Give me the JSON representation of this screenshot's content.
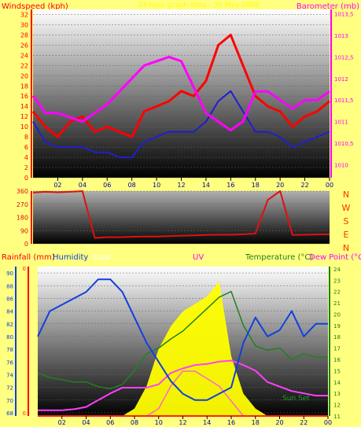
{
  "header": {
    "title": "24 hour graph data - 30 May 2008"
  },
  "colors": {
    "background": "#ffff80",
    "wind_speed": "#ff0000",
    "wind_avg": "#1f1fd0",
    "barometer": "#ff00ff",
    "wind_dir": "#e01010",
    "rain": "#ff2020",
    "humidity": "#1040e0",
    "solar": "#ffff00",
    "uv": "#ff66cc",
    "temperature": "#208020",
    "dewpoint": "#ff40ff",
    "compass": "#ff3300"
  },
  "chart_data": [
    {
      "type": "line",
      "name": "wind-barometer",
      "ylabel_left": "Windspeed (kph)",
      "ylabel_right": "Barometer (mb)",
      "y_ticks_left": [
        "0",
        "2",
        "4",
        "6",
        "8",
        "10",
        "12",
        "14",
        "16",
        "18",
        "20",
        "22",
        "24",
        "26",
        "28",
        "30",
        "32"
      ],
      "y_ticks_right": [
        "1010",
        "1010,5",
        "1011",
        "1011,5",
        "1012",
        "1012,5",
        "1013",
        "1013,5"
      ],
      "ylim_left": [
        0,
        33
      ],
      "ylim_right": [
        1009.7,
        1013.6
      ],
      "x_ticks": [
        "02",
        "04",
        "06",
        "08",
        "10",
        "12",
        "14",
        "16",
        "18",
        "20",
        "22",
        "00"
      ],
      "x": [
        0,
        1,
        2,
        3,
        4,
        5,
        6,
        7,
        8,
        9,
        10,
        11,
        12,
        13,
        14,
        15,
        16,
        17,
        18,
        19,
        20,
        21,
        22,
        23,
        24
      ],
      "series": [
        {
          "name": "Windspeed",
          "values": [
            13,
            10,
            8,
            11,
            12,
            9,
            10,
            9,
            8,
            13,
            14,
            15,
            17,
            16,
            19,
            26,
            28,
            22,
            16,
            14,
            13,
            10,
            12,
            13,
            15
          ]
        },
        {
          "name": "Wind avg",
          "values": [
            11,
            7,
            6,
            6,
            6,
            5,
            5,
            4,
            4,
            7,
            8,
            9,
            9,
            9,
            11,
            15,
            17,
            13,
            9,
            9,
            8,
            6,
            7,
            8,
            9
          ]
        },
        {
          "name": "Barometer",
          "values": [
            1011.6,
            1011.2,
            1011.2,
            1011.1,
            1011.0,
            1011.2,
            1011.4,
            1011.7,
            1012.0,
            1012.3,
            1012.4,
            1012.5,
            1012.4,
            1011.8,
            1011.2,
            1011.0,
            1010.8,
            1011.0,
            1011.7,
            1011.7,
            1011.5,
            1011.3,
            1011.5,
            1011.5,
            1011.7
          ]
        }
      ]
    },
    {
      "type": "line",
      "name": "wind-direction",
      "y_ticks": [
        "0",
        "90",
        "180",
        "270",
        "360"
      ],
      "ylim": [
        0,
        360
      ],
      "compass_labels": [
        "N",
        "W",
        "S",
        "E",
        "N"
      ],
      "x": [
        0,
        1,
        2,
        3,
        4,
        5,
        6,
        7,
        8,
        9,
        10,
        11,
        12,
        13,
        14,
        15,
        16,
        17,
        18,
        19,
        20,
        21,
        22,
        23,
        24
      ],
      "series": [
        {
          "name": "Wind direction",
          "values": [
            350,
            355,
            352,
            355,
            360,
            40,
            45,
            45,
            48,
            50,
            50,
            52,
            55,
            58,
            60,
            62,
            62,
            65,
            70,
            300,
            360,
            60,
            62,
            64,
            65
          ]
        }
      ]
    },
    {
      "type": "line",
      "name": "rain-humidity-solar-temperature",
      "labels": [
        "Rainfall (mm)",
        "Humidity",
        "Solar",
        "UV",
        "Temperature (°C)",
        "Dew Point (°C)"
      ],
      "annotations": [
        "Sun Set"
      ],
      "y_ticks_left_rain": [
        "0"
      ],
      "y_ticks_left_humidity": [
        "68",
        "70",
        "72",
        "74",
        "76",
        "78",
        "80",
        "82",
        "84",
        "86",
        "88",
        "90"
      ],
      "y_ticks_right": [
        "11",
        "12",
        "13",
        "14",
        "15",
        "16",
        "17",
        "18",
        "19",
        "20",
        "21",
        "22",
        "23",
        "24"
      ],
      "ylim_humidity": [
        67.5,
        91
      ],
      "ylim_temperature": [
        11,
        24.2
      ],
      "x_ticks": [
        "02",
        "04",
        "06",
        "08",
        "10",
        "12",
        "14",
        "16",
        "18",
        "20",
        "22",
        "00"
      ],
      "x": [
        0,
        1,
        2,
        3,
        4,
        5,
        6,
        7,
        8,
        9,
        10,
        11,
        12,
        13,
        14,
        15,
        16,
        17,
        18,
        19,
        20,
        21,
        22,
        23,
        24
      ],
      "series": [
        {
          "name": "Humidity",
          "values": [
            80,
            84,
            85,
            86,
            87,
            89,
            89,
            87,
            83,
            79,
            76,
            73,
            71,
            70,
            70,
            71,
            72,
            79,
            83,
            80,
            81,
            84,
            80,
            82,
            82
          ]
        },
        {
          "name": "Temperature",
          "values": [
            14.8,
            14.4,
            14.2,
            14.0,
            14.0,
            13.6,
            13.4,
            13.8,
            15.0,
            16.5,
            17.0,
            17.8,
            18.5,
            19.5,
            20.5,
            21.5,
            22.0,
            19.0,
            17.2,
            16.8,
            17.0,
            16.0,
            16.5,
            16.2,
            16.2
          ]
        },
        {
          "name": "Dew Point",
          "values": [
            11.5,
            11.5,
            11.5,
            11.6,
            11.8,
            12.4,
            13.0,
            13.5,
            13.5,
            13.5,
            13.8,
            14.8,
            15.2,
            15.5,
            15.6,
            15.8,
            15.9,
            15.5,
            15.0,
            14.0,
            13.6,
            13.2,
            13.0,
            12.8,
            12.8
          ]
        },
        {
          "name": "Solar",
          "values": [
            0,
            0,
            0,
            0,
            0,
            0,
            0,
            0,
            5,
            20,
            45,
            60,
            70,
            75,
            80,
            90,
            40,
            15,
            5,
            0,
            0,
            0,
            0,
            0,
            0
          ]
        },
        {
          "name": "UV",
          "values": [
            0,
            0,
            0,
            0,
            0,
            0,
            0,
            0,
            0,
            0,
            5,
            20,
            30,
            30,
            25,
            20,
            10,
            0,
            0,
            0,
            0,
            0,
            0,
            0,
            0
          ]
        },
        {
          "name": "Rainfall",
          "values": [
            0,
            0,
            0,
            0,
            0,
            0,
            0,
            0,
            0,
            0,
            0,
            0,
            0,
            0,
            0,
            0,
            0,
            0,
            0,
            0,
            0,
            0,
            0,
            0,
            0
          ]
        }
      ]
    }
  ]
}
